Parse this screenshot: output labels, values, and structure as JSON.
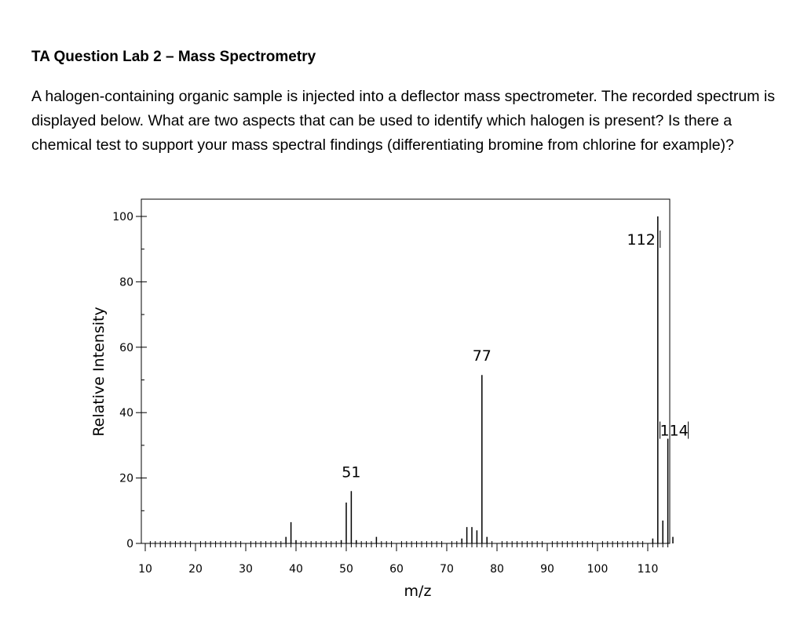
{
  "question": {
    "title": "TA Question Lab 2 – Mass Spectrometry",
    "body": "A halogen-containing organic sample is injected into a deflector mass spectrometer. The recorded spectrum is displayed below. What are two aspects that can be used to identify which halogen is present? Is there a chemical test to support your mass spectral findings (differentiating bromine from chlorine for example)?"
  },
  "chart_data": {
    "type": "bar",
    "xlabel": "m/z",
    "ylabel": "Relative Intensity",
    "xlim": [
      8,
      117
    ],
    "ylim": [
      0,
      100
    ],
    "xticks": [
      10,
      20,
      30,
      40,
      50,
      60,
      70,
      80,
      90,
      100,
      110
    ],
    "yticks": [
      0,
      20,
      40,
      60,
      80,
      100
    ],
    "grid": false,
    "peaks": [
      {
        "mz": 38,
        "intensity": 2
      },
      {
        "mz": 39,
        "intensity": 6.5
      },
      {
        "mz": 40,
        "intensity": 1
      },
      {
        "mz": 49,
        "intensity": 1
      },
      {
        "mz": 50,
        "intensity": 12.5
      },
      {
        "mz": 51,
        "intensity": 16
      },
      {
        "mz": 52,
        "intensity": 1
      },
      {
        "mz": 56,
        "intensity": 2
      },
      {
        "mz": 73,
        "intensity": 1.5
      },
      {
        "mz": 74,
        "intensity": 5
      },
      {
        "mz": 75,
        "intensity": 5
      },
      {
        "mz": 76,
        "intensity": 4
      },
      {
        "mz": 77,
        "intensity": 51.5
      },
      {
        "mz": 78,
        "intensity": 2
      },
      {
        "mz": 111,
        "intensity": 1.5
      },
      {
        "mz": 112,
        "intensity": 100
      },
      {
        "mz": 113,
        "intensity": 7
      },
      {
        "mz": 114,
        "intensity": 32
      },
      {
        "mz": 115,
        "intensity": 2
      }
    ],
    "annotations": [
      {
        "text": "112",
        "mz": 112
      },
      {
        "text": "77",
        "mz": 77
      },
      {
        "text": "51",
        "mz": 51
      },
      {
        "text": "114",
        "mz": 114
      }
    ]
  }
}
